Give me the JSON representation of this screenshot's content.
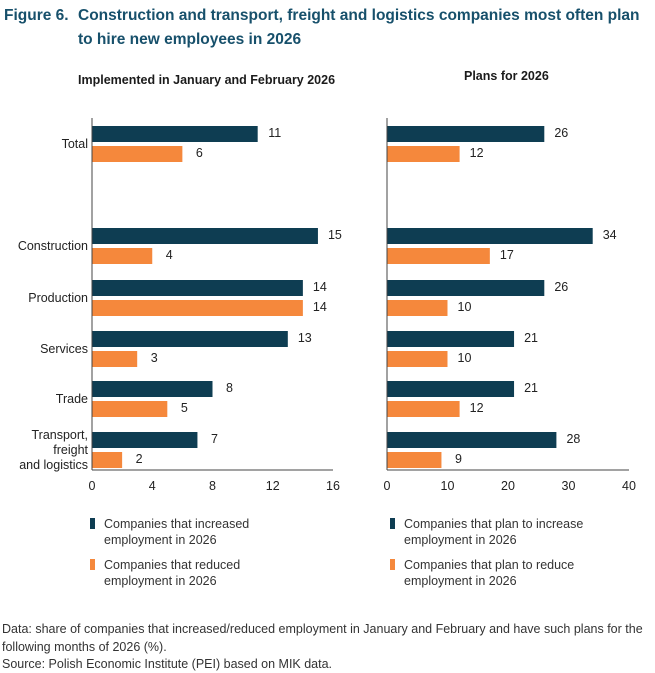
{
  "figure_label": "Figure 6.",
  "title": "Construction and transport, freight and logistics companies most often plan to hire new employees in 2026",
  "colors": {
    "increase": "#0e3d52",
    "reduce": "#f5883c",
    "title": "#17506b"
  },
  "chart_data": [
    {
      "type": "bar",
      "orientation": "horizontal",
      "title": "Implemented in January and February 2026",
      "categories": [
        "Total",
        "Construction",
        "Production",
        "Services",
        "Trade",
        "Transport, freight and logistics"
      ],
      "series": [
        {
          "name": "Companies that increased employment in 2026",
          "values": [
            11,
            15,
            14,
            13,
            8,
            7
          ]
        },
        {
          "name": "Companies that reduced employment in 2026",
          "values": [
            6,
            4,
            14,
            3,
            5,
            2
          ]
        }
      ],
      "xlim": [
        0,
        16
      ],
      "xticks": [
        0,
        4,
        8,
        12,
        16
      ],
      "grid": false,
      "legend": "bottom"
    },
    {
      "type": "bar",
      "orientation": "horizontal",
      "title": "Plans for 2026",
      "categories": [
        "Total",
        "Construction",
        "Production",
        "Services",
        "Trade",
        "Transport, freight and logistics"
      ],
      "series": [
        {
          "name": "Companies that plan to increase employment in 2026",
          "values": [
            26,
            34,
            26,
            21,
            21,
            28
          ]
        },
        {
          "name": "Companies that plan to reduce employment in 2026",
          "values": [
            12,
            17,
            10,
            10,
            12,
            9
          ]
        }
      ],
      "xlim": [
        0,
        40
      ],
      "xticks": [
        0,
        10,
        20,
        30,
        40
      ],
      "grid": false,
      "legend": "bottom"
    }
  ],
  "category_label_lines": [
    [
      "Total"
    ],
    [
      "Construction"
    ],
    [
      "Production"
    ],
    [
      "Services"
    ],
    [
      "Trade"
    ],
    [
      "Transport,",
      "freight",
      "and logistics"
    ]
  ],
  "note": "Data: share of companies that increased/reduced employment in January and February and have such plans for the following months of 2026 (%).",
  "source": "Source: Polish Economic Institute (PEI) based on MIK data."
}
